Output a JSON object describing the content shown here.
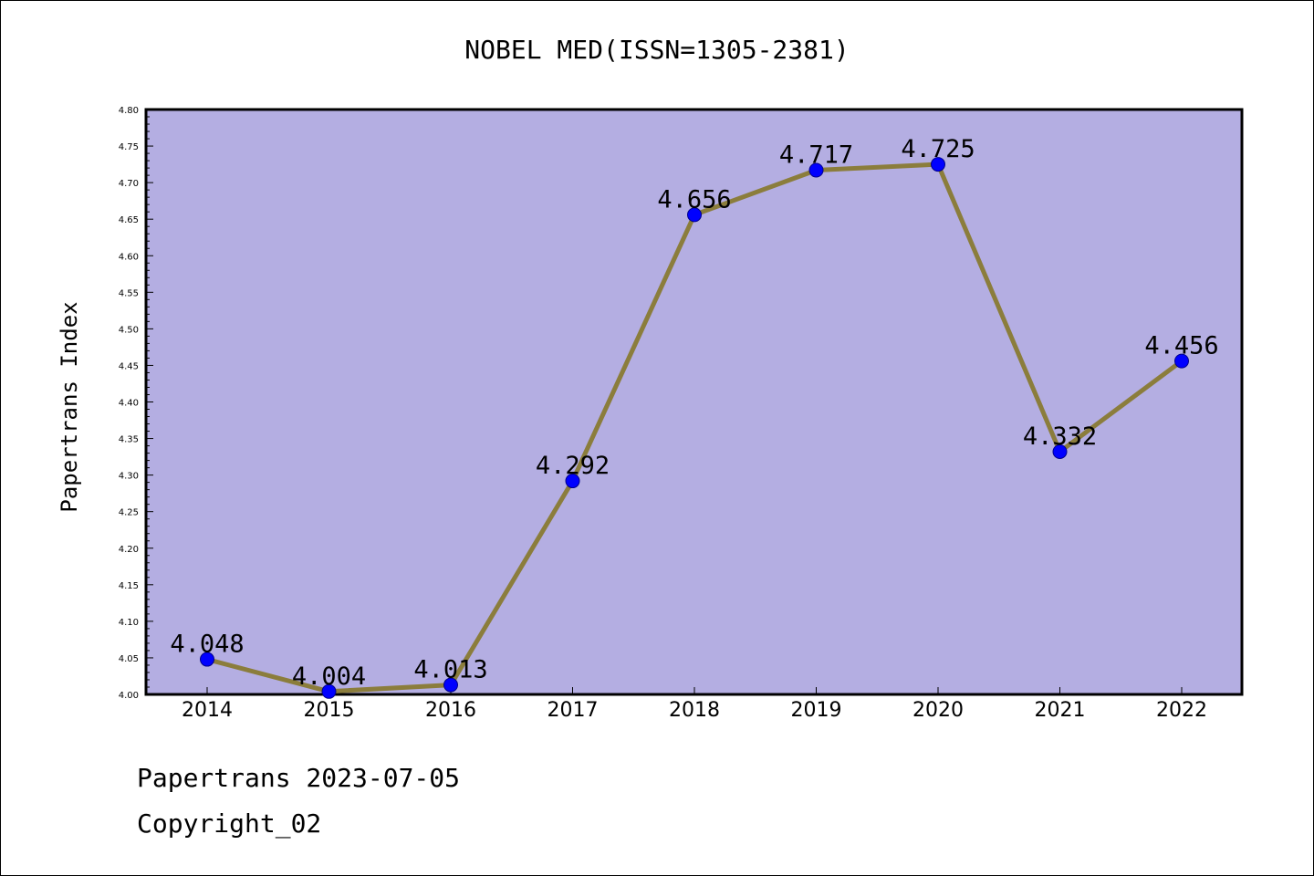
{
  "chart_data": {
    "type": "line",
    "title": "NOBEL MED(ISSN=1305-2381)",
    "xlabel": "",
    "ylabel": "Papertrans Index",
    "categories": [
      "2014",
      "2015",
      "2016",
      "2017",
      "2018",
      "2019",
      "2020",
      "2021",
      "2022"
    ],
    "series": [
      {
        "values": [
          4.048,
          4.004,
          4.013,
          4.292,
          4.656,
          4.717,
          4.725,
          4.332,
          4.456
        ],
        "data_labels": [
          "4.048",
          "4.004",
          "4.013",
          "4.292",
          "4.656",
          "4.717",
          "4.725",
          "4.332",
          "4.456"
        ]
      }
    ],
    "ylim": [
      4.0,
      4.8
    ],
    "y_ticks": [
      "4.00",
      "4.05",
      "4.10",
      "4.15",
      "4.20",
      "4.25",
      "4.30",
      "4.35",
      "4.40",
      "4.45",
      "4.50",
      "4.55",
      "4.60",
      "4.65",
      "4.70",
      "4.75",
      "4.80"
    ],
    "grid": false,
    "legend": "none",
    "colors": {
      "plot_background": "#b4aee2",
      "line": "#8b7d3c",
      "marker": "#0000ff"
    }
  },
  "footer": {
    "date_line": "Papertrans 2023-07-05",
    "copyright_line": "Copyright_02"
  }
}
